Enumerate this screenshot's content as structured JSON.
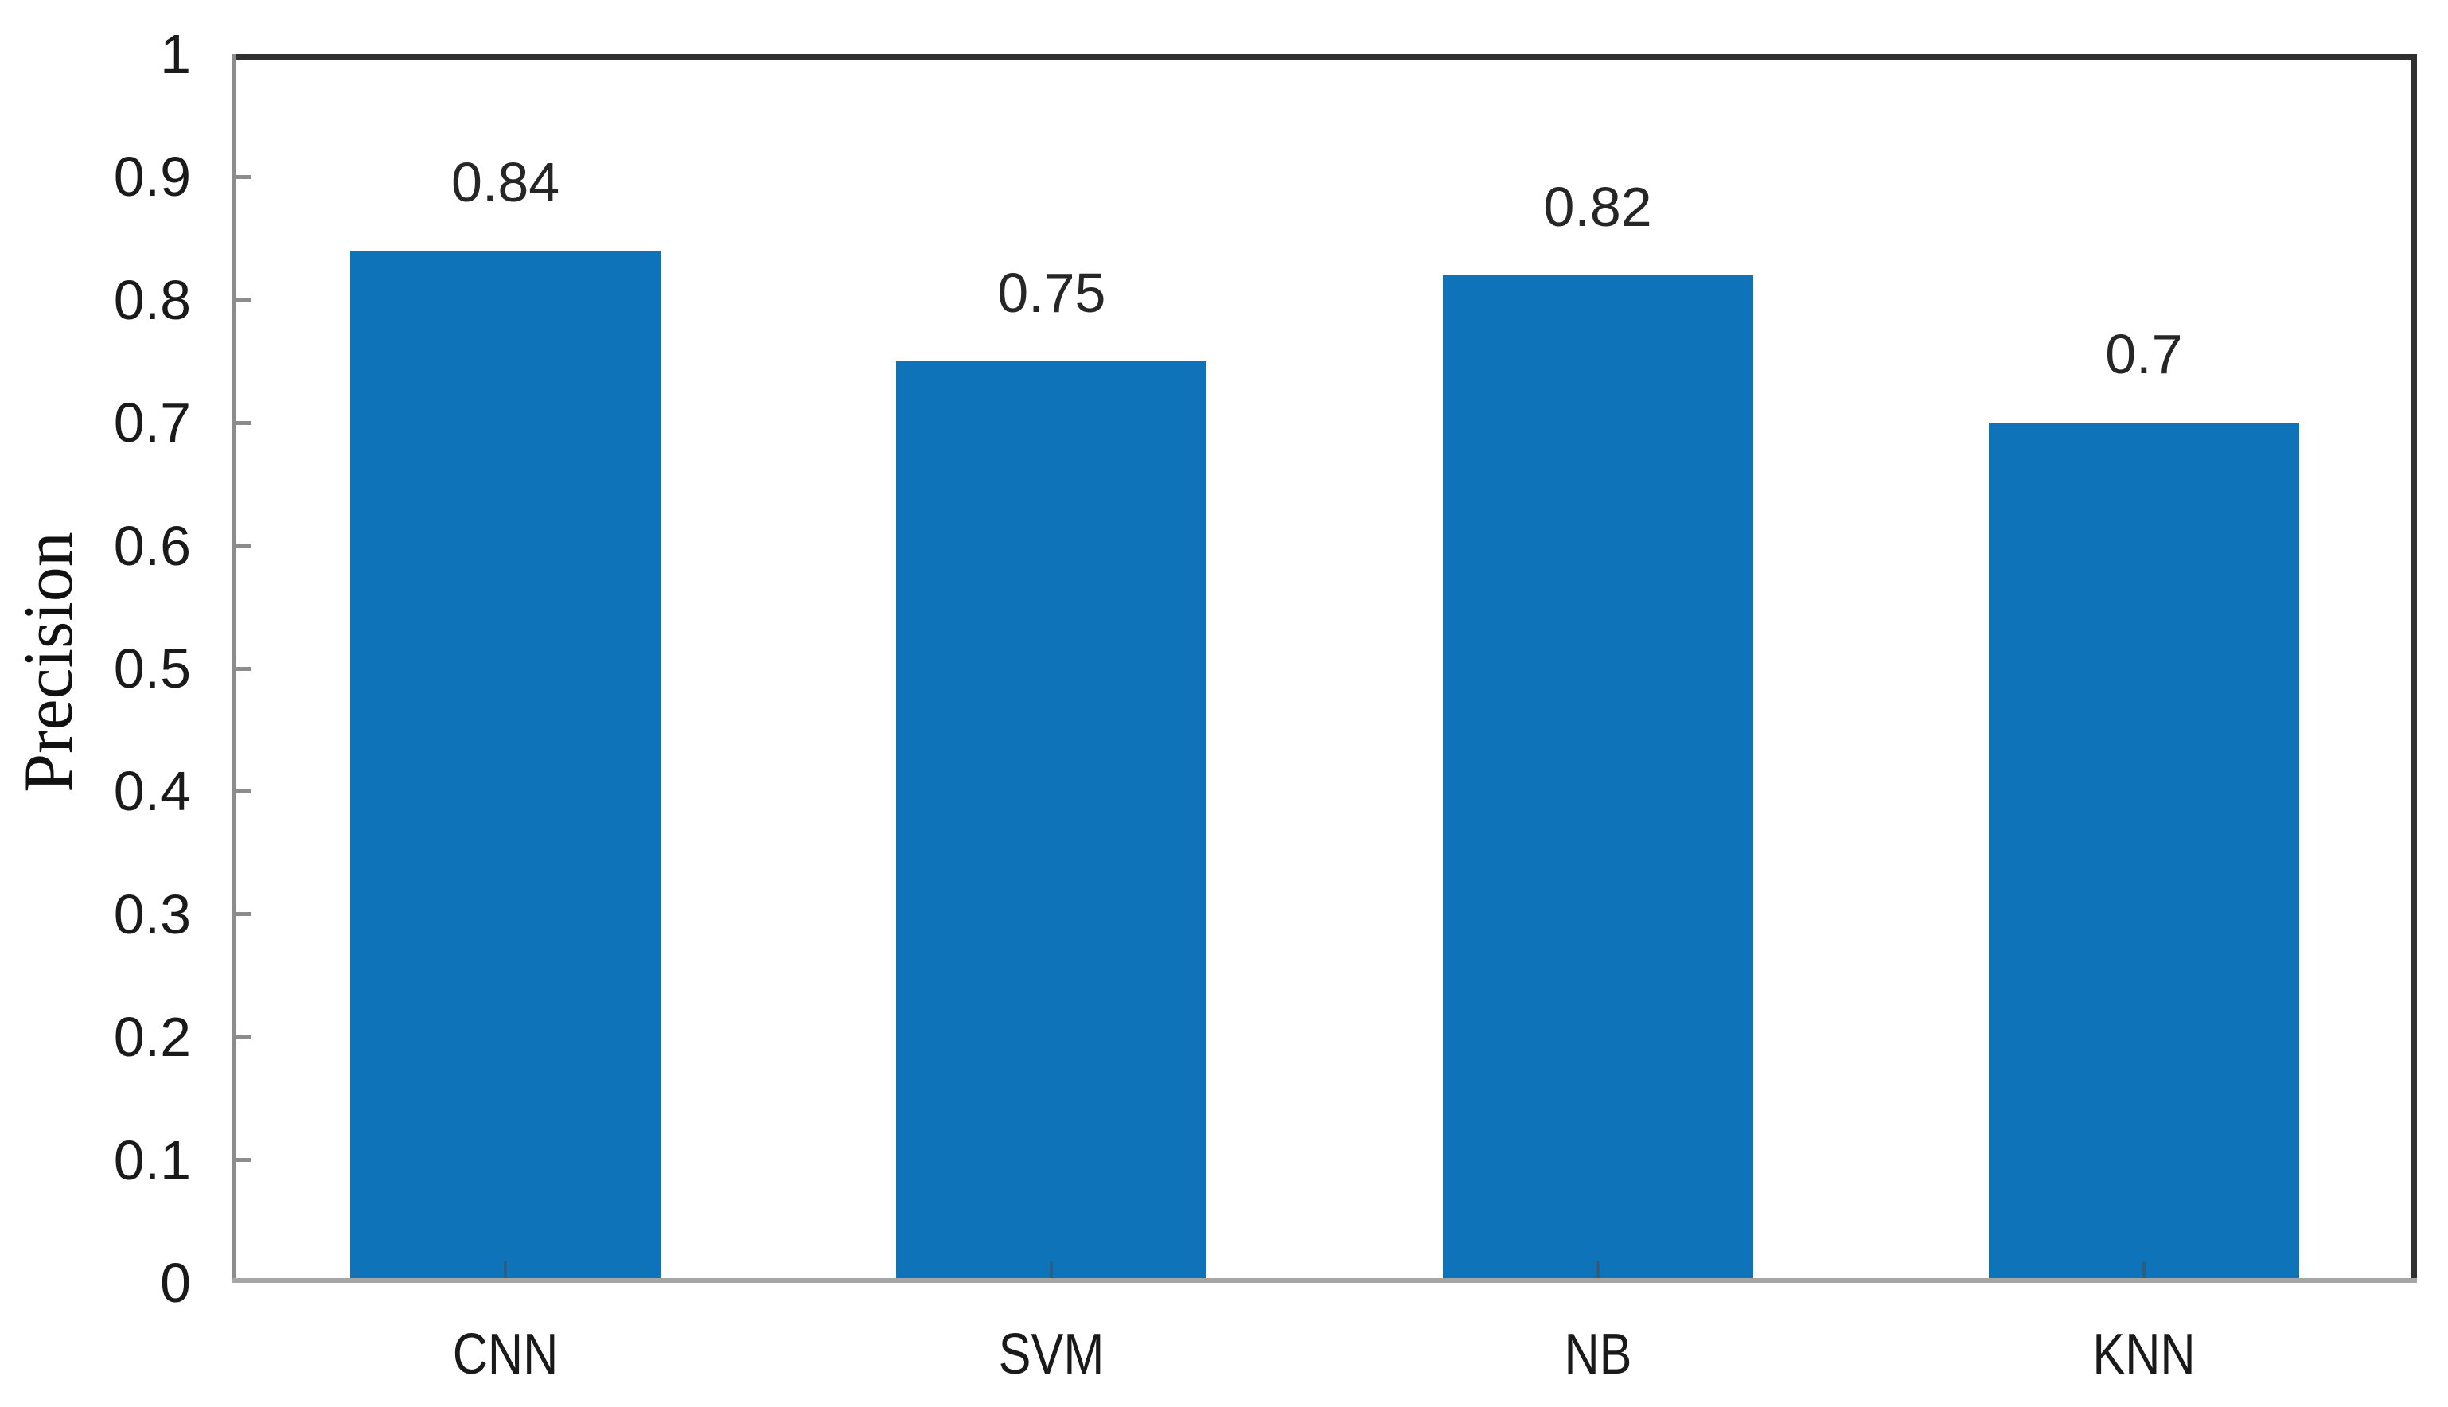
{
  "chart_data": {
    "type": "bar",
    "title": "",
    "categories": [
      "CNN",
      "SVM",
      "NB",
      "KNN"
    ],
    "values": [
      0.84,
      0.75,
      0.82,
      0.7
    ],
    "value_labels": [
      "0.84",
      "0.75",
      "0.82",
      "0.7"
    ],
    "xlabel": "",
    "ylabel": "Precision",
    "ylim": [
      0,
      1
    ],
    "ytick_step": 0.1,
    "ytick_labels": [
      "0",
      "0.1",
      "0.2",
      "0.3",
      "0.4",
      "0.5",
      "0.6",
      "0.7",
      "0.8",
      "0.9",
      "1"
    ],
    "grid": false,
    "legend": null,
    "colors": {
      "bar": "#0E73B8",
      "axis_line": "#8C8C8C",
      "baseline": "#A6A6A6",
      "plot_border": "#303030",
      "tick_mark": "#8C8C8C",
      "category_tick": "#4A4A4A",
      "tick_text": "#1A1A1A",
      "value_text": "#262626",
      "axis_title_text": "#111111"
    }
  }
}
